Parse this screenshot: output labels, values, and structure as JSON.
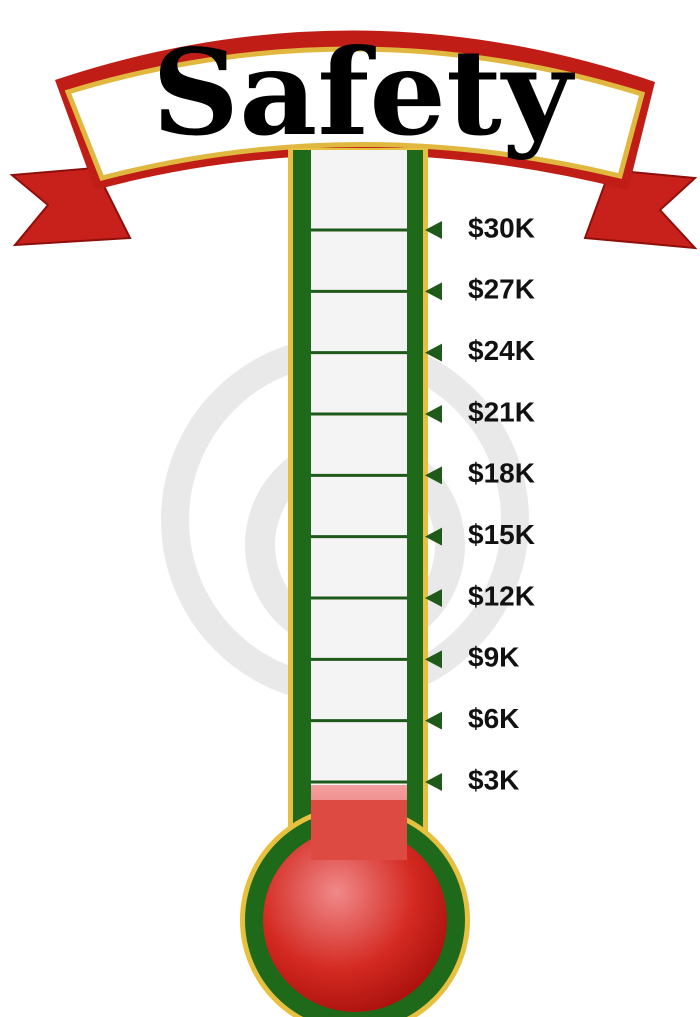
{
  "banner": {
    "title": "Safety"
  },
  "scale": {
    "labels": [
      "$30K",
      "$27K",
      "$24K",
      "$21K",
      "$18K",
      "$15K",
      "$12K",
      "$9K",
      "$6K",
      "$3K"
    ]
  }
}
